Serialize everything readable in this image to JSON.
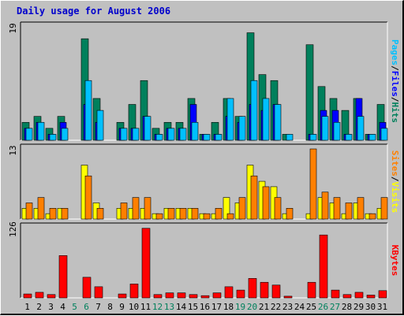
{
  "title": "Daily usage for August 2006",
  "colors": {
    "background": "#c0c0c0",
    "title": "#0000cc",
    "hits": "#00805c",
    "files": "#0000ff",
    "pages": "#00c0ff",
    "visits": "#ffff00",
    "sites": "#ff8000",
    "kbytes": "#ff0000",
    "weekend_day": "#00805c",
    "weekday": "#000000"
  },
  "legends": {
    "top": [
      {
        "text": "Pages",
        "color": "#00c0ff"
      },
      {
        "text": "/",
        "color": "#000000"
      },
      {
        "text": "Files",
        "color": "#0000ff"
      },
      {
        "text": "/",
        "color": "#000000"
      },
      {
        "text": "Hits",
        "color": "#00805c"
      }
    ],
    "middle": [
      {
        "text": "Sites",
        "color": "#ff8000"
      },
      {
        "text": "/",
        "color": "#000000"
      },
      {
        "text": "Visits",
        "color": "#ffff00"
      }
    ],
    "bottom": [
      {
        "text": "KBytes",
        "color": "#ff0000"
      }
    ]
  },
  "chart_data": {
    "type": "bar",
    "x": [
      "1",
      "2",
      "3",
      "4",
      "5",
      "6",
      "7",
      "8",
      "9",
      "10",
      "11",
      "12",
      "13",
      "14",
      "15",
      "16",
      "17",
      "18",
      "19",
      "20",
      "21",
      "22",
      "23",
      "24",
      "25",
      "26",
      "27",
      "28",
      "29",
      "30",
      "31"
    ],
    "weekend_days": [
      "5",
      "6",
      "12",
      "13",
      "19",
      "20",
      "26",
      "27"
    ],
    "panels": [
      {
        "ymax_label": "19",
        "ymax": 19,
        "series": [
          {
            "name": "Hits",
            "values": [
              3,
              4,
              2,
              4,
              0,
              17,
              7,
              0,
              3,
              6,
              10,
              2,
              3,
              3,
              7,
              1,
              3,
              7,
              4,
              18,
              11,
              10,
              1,
              0,
              16,
              9,
              7,
              5,
              7,
              1,
              6
            ]
          },
          {
            "name": "Files",
            "values": [
              2,
              3,
              1,
              3,
              0,
              6,
              3,
              0,
              2,
              2,
              4,
              1,
              2,
              2,
              6,
              1,
              1,
              4,
              3,
              6,
              5,
              6,
              0,
              0,
              1,
              5,
              5,
              1,
              7,
              1,
              3
            ]
          },
          {
            "name": "Pages",
            "values": [
              2,
              3,
              1,
              2,
              0,
              10,
              5,
              0,
              2,
              2,
              4,
              1,
              2,
              2,
              3,
              1,
              1,
              7,
              4,
              10,
              7,
              6,
              1,
              0,
              1,
              4,
              3,
              1,
              4,
              1,
              2
            ]
          }
        ]
      },
      {
        "ymax_label": "13",
        "ymax": 13,
        "series": [
          {
            "name": "Visits",
            "values": [
              2,
              2,
              1,
              2,
              0,
              10,
              3,
              0,
              2,
              2,
              2,
              1,
              2,
              2,
              2,
              1,
              1,
              4,
              3,
              10,
              7,
              6,
              1,
              0,
              1,
              4,
              3,
              1,
              3,
              1,
              2
            ]
          },
          {
            "name": "Sites",
            "values": [
              3,
              4,
              2,
              2,
              0,
              8,
              2,
              0,
              3,
              4,
              4,
              1,
              2,
              2,
              2,
              1,
              2,
              1,
              4,
              8,
              6,
              4,
              2,
              0,
              13,
              5,
              4,
              3,
              4,
              1,
              4
            ]
          }
        ]
      },
      {
        "ymax_label": "126",
        "ymax": 126,
        "series": [
          {
            "name": "KBytes",
            "values": [
              7,
              10,
              6,
              76,
              0,
              37,
              20,
              0,
              7,
              25,
              125,
              6,
              9,
              9,
              6,
              4,
              9,
              20,
              14,
              35,
              28,
              23,
              3,
              0,
              28,
              113,
              14,
              6,
              10,
              5,
              13
            ]
          }
        ]
      }
    ]
  }
}
